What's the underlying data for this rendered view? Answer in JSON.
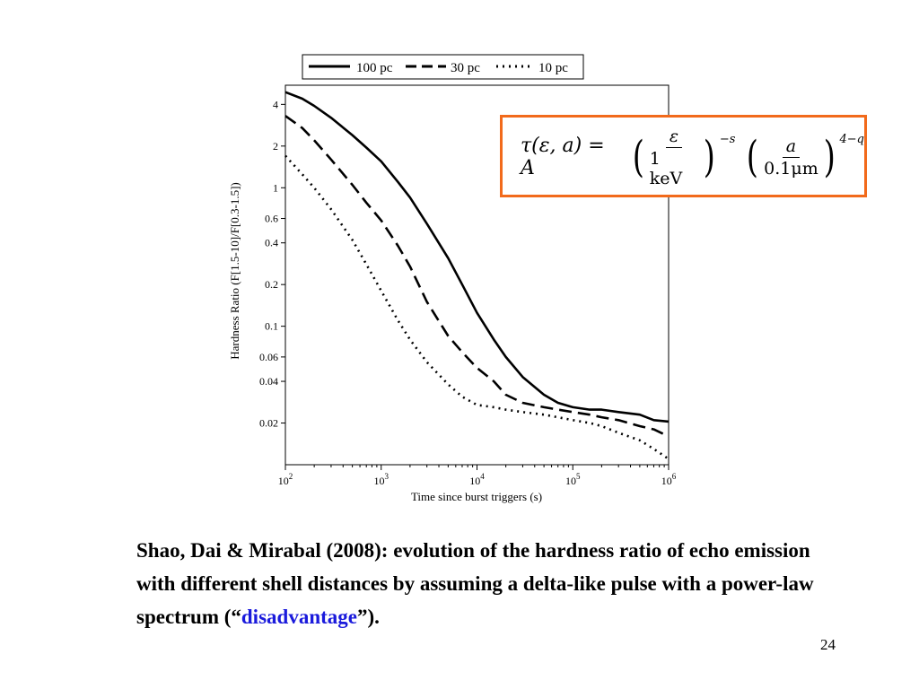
{
  "chart_data": {
    "type": "line",
    "xlabel": "Time since burst triggers (s)",
    "ylabel": "Hardness Ratio (F[1.5-10]/F[0.3-1.5])",
    "xscale": "log",
    "yscale": "log",
    "xlim": [
      100,
      1000000
    ],
    "ylim": [
      0.01,
      5.5
    ],
    "xticks": [
      100,
      1000,
      10000,
      100000,
      1000000
    ],
    "xtick_labels": [
      {
        "base": "10",
        "exp": "2"
      },
      {
        "base": "10",
        "exp": "3"
      },
      {
        "base": "10",
        "exp": "4"
      },
      {
        "base": "10",
        "exp": "5"
      },
      {
        "base": "10",
        "exp": "6"
      }
    ],
    "yticks": [
      4,
      2,
      1,
      0.6,
      0.4,
      0.2,
      0.1,
      0.06,
      0.04,
      0.02
    ],
    "ytick_labels": [
      "4",
      "2",
      "1",
      "0.6",
      "0.4",
      "0.2",
      "0.1",
      "0.06",
      "0.04",
      "0.02"
    ],
    "grid": false,
    "legend_position": "top",
    "series": [
      {
        "name": "100 pc",
        "style": "solid",
        "x": [
          100,
          150,
          200,
          300,
          500,
          700,
          1000,
          1500,
          2000,
          3000,
          5000,
          7000,
          10000,
          15000,
          20000,
          30000,
          50000,
          70000,
          100000,
          150000,
          200000,
          300000,
          500000,
          700000,
          1000000
        ],
        "y": [
          4.9,
          4.4,
          3.9,
          3.2,
          2.4,
          1.95,
          1.55,
          1.1,
          0.85,
          0.55,
          0.31,
          0.2,
          0.125,
          0.08,
          0.06,
          0.043,
          0.032,
          0.028,
          0.026,
          0.025,
          0.025,
          0.024,
          0.023,
          0.021,
          0.0205
        ]
      },
      {
        "name": "30 pc",
        "style": "dashed",
        "x": [
          100,
          150,
          200,
          300,
          500,
          700,
          1000,
          1500,
          2000,
          3000,
          5000,
          7000,
          10000,
          15000,
          20000,
          30000,
          50000,
          70000,
          100000,
          150000,
          200000,
          300000,
          500000,
          700000,
          1000000
        ],
        "y": [
          3.3,
          2.7,
          2.2,
          1.6,
          1.05,
          0.78,
          0.58,
          0.38,
          0.27,
          0.15,
          0.085,
          0.065,
          0.05,
          0.04,
          0.032,
          0.028,
          0.026,
          0.025,
          0.024,
          0.023,
          0.022,
          0.021,
          0.019,
          0.018,
          0.016
        ]
      },
      {
        "name": "10 pc",
        "style": "dotted",
        "x": [
          100,
          150,
          200,
          300,
          500,
          700,
          1000,
          1500,
          2000,
          3000,
          5000,
          7000,
          10000,
          15000,
          20000,
          30000,
          50000,
          70000,
          100000,
          150000,
          200000,
          300000,
          500000,
          700000,
          1000000
        ],
        "y": [
          1.7,
          1.25,
          1.0,
          0.7,
          0.42,
          0.28,
          0.18,
          0.11,
          0.08,
          0.055,
          0.038,
          0.031,
          0.027,
          0.026,
          0.025,
          0.024,
          0.023,
          0.022,
          0.021,
          0.02,
          0.019,
          0.017,
          0.015,
          0.013,
          0.011
        ]
      }
    ]
  },
  "formula": {
    "lhs": "τ(ε, a) = A",
    "frac1_num": "ε",
    "frac1_den": "1 keV",
    "exp1": "−s",
    "frac2_num": "a",
    "frac2_den": "0.1μm",
    "exp2": "4−q",
    "border_color": "#f26a1b"
  },
  "caption": {
    "text_before": "Shao, Dai & Mirabal (2008): evolution of the hardness ratio of echo emission with different shell distances by assuming a delta-like pulse with a power-law spectrum (“",
    "highlight": "disadvantage",
    "text_after": "”).",
    "highlight_color": "#1a1adc"
  },
  "page_number": "24"
}
